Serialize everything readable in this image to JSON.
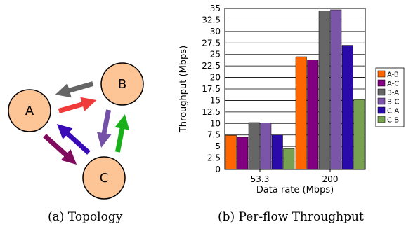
{
  "topology": {
    "nodes": [
      {
        "id": "A",
        "label": "A"
      },
      {
        "id": "B",
        "label": "B"
      },
      {
        "id": "C",
        "label": "C"
      }
    ],
    "node_color": "#fdc596",
    "links": [
      {
        "from": "A",
        "to": "B",
        "color": "#f03b3b"
      },
      {
        "from": "B",
        "to": "A",
        "color": "#666666"
      },
      {
        "from": "A",
        "to": "C",
        "color": "#800a5e"
      },
      {
        "from": "C",
        "to": "A",
        "color": "#3a0cb7"
      },
      {
        "from": "C",
        "to": "B",
        "color": "#19b019"
      },
      {
        "from": "B",
        "to": "C",
        "color": "#7451a6"
      }
    ]
  },
  "captions": {
    "a": "(a)  Topology",
    "b": "(b)  Per-flow Throughput"
  },
  "chart_data": {
    "type": "bar",
    "categories": [
      "53.3",
      "200"
    ],
    "series": [
      {
        "name": "A-B",
        "color": "#ff6600",
        "values": [
          7.4,
          24.5
        ]
      },
      {
        "name": "A-C",
        "color": "#800080",
        "values": [
          7.0,
          23.8
        ]
      },
      {
        "name": "B-A",
        "color": "#666666",
        "values": [
          10.2,
          34.5
        ]
      },
      {
        "name": "B-C",
        "color": "#7a55a8",
        "values": [
          10.1,
          34.7
        ]
      },
      {
        "name": "C-A",
        "color": "#2a0aa8",
        "values": [
          7.5,
          27.0
        ]
      },
      {
        "name": "C-B",
        "color": "#77a050",
        "values": [
          4.5,
          15.2
        ]
      }
    ],
    "xlabel": "Data rate (Mbps)",
    "ylabel": "Throughput (Mbps)",
    "ylim": [
      0,
      35
    ],
    "yticks": [
      "0",
      "2.5",
      "5",
      "7.5",
      "10",
      "12.5",
      "15",
      "17.5",
      "20",
      "22.5",
      "25",
      "27.5",
      "30",
      "32.5",
      "35"
    ],
    "grid": "horizontal",
    "legend_position": "right"
  }
}
